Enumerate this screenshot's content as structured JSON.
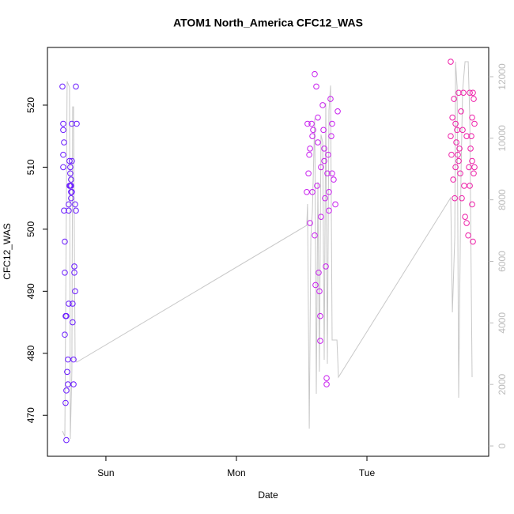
{
  "chart_data": {
    "type": "scatter",
    "title": "ATOM1 North_America CFC12_WAS",
    "x_label": "Date",
    "y_label": "CFC12_WAS",
    "xlim": [
      -0.448,
      2.933
    ],
    "xticks": [
      {
        "value": 0,
        "label": "Sun"
      },
      {
        "value": 1,
        "label": "Mon"
      },
      {
        "value": 2,
        "label": "Tue"
      }
    ],
    "ylim": [
      463.4,
      529.3
    ],
    "yticks": [
      470,
      480,
      490,
      500,
      510,
      520
    ],
    "y2lim": [
      -334,
      12951
    ],
    "y2ticks": [
      0,
      2000,
      4000,
      6000,
      8000,
      10000,
      12000
    ],
    "y2_color": "#bbbbbb",
    "series": [
      {
        "color": "#6a1bff",
        "x": [
          -0.333,
          -0.327,
          -0.327,
          -0.321,
          -0.327,
          -0.327,
          -0.321,
          -0.315,
          -0.315,
          -0.309,
          -0.303,
          -0.315,
          -0.309,
          -0.303,
          -0.303,
          -0.297,
          -0.291,
          -0.291,
          -0.285,
          -0.285,
          -0.285,
          -0.279,
          -0.279,
          -0.273,
          -0.273,
          -0.267,
          -0.267,
          -0.267,
          -0.261,
          -0.261,
          -0.261,
          -0.255,
          -0.255,
          -0.248,
          -0.248,
          -0.242,
          -0.242,
          -0.236,
          -0.236,
          -0.23,
          -0.224,
          -0.23,
          -0.273,
          -0.267
        ],
        "values": [
          523,
          517,
          516,
          514,
          512,
          510,
          503,
          498,
          493,
          486,
          486,
          483,
          472,
          474,
          466,
          477,
          479,
          475,
          488,
          503,
          504,
          507,
          511,
          510,
          509,
          508,
          506,
          505,
          506,
          511,
          517,
          488,
          485,
          479,
          475,
          493,
          494,
          490,
          504,
          503,
          517,
          523,
          507,
          507
        ]
      },
      {
        "color": "#c81fee",
        "x": [
          1.539,
          1.545,
          1.552,
          1.558,
          1.564,
          1.576,
          1.582,
          1.588,
          1.6,
          1.6,
          1.606,
          1.612,
          1.618,
          1.624,
          1.624,
          1.63,
          1.636,
          1.642,
          1.642,
          1.648,
          1.661,
          1.667,
          1.673,
          1.679,
          1.685,
          1.691,
          1.691,
          1.697,
          1.703,
          1.709,
          1.721,
          1.727,
          1.733,
          1.745,
          1.758,
          1.776,
          1.648,
          1.673,
          1.582,
          1.564,
          1.733,
          1.709
        ],
        "values": [
          506,
          517,
          509,
          512,
          501,
          517,
          506,
          516,
          525,
          499,
          491,
          523,
          507,
          514,
          518,
          493,
          490,
          486,
          482,
          510,
          520,
          516,
          513,
          505,
          494,
          476,
          475,
          509,
          512,
          506,
          521,
          515,
          517,
          508,
          504,
          519,
          502,
          511,
          515,
          513,
          509,
          503
        ]
      },
      {
        "color": "#ee1fa8",
        "x": [
          2.642,
          2.642,
          2.648,
          2.655,
          2.661,
          2.667,
          2.679,
          2.679,
          2.685,
          2.691,
          2.703,
          2.703,
          2.709,
          2.715,
          2.721,
          2.727,
          2.739,
          2.745,
          2.752,
          2.764,
          2.764,
          2.776,
          2.782,
          2.788,
          2.794,
          2.8,
          2.806,
          2.806,
          2.812,
          2.812,
          2.818,
          2.824,
          2.824,
          2.818,
          2.673,
          2.697,
          2.733,
          2.788,
          2.806
        ],
        "values": [
          527,
          515,
          512,
          518,
          508,
          521,
          517,
          510,
          514,
          516,
          522,
          511,
          513,
          509,
          519,
          505,
          522,
          507,
          502,
          515,
          501,
          499,
          510,
          507,
          513,
          515,
          518,
          504,
          522,
          498,
          521,
          517,
          510,
          509,
          505,
          512,
          516,
          522,
          511
        ]
      }
    ],
    "line": {
      "color": "#c8c8c8",
      "axis": "y2",
      "x": [
        -0.333,
        -0.315,
        -0.297,
        -0.279,
        -0.273,
        -0.261,
        -0.255,
        -0.248,
        -0.236,
        -0.224,
        1.539,
        1.545,
        1.558,
        1.57,
        1.582,
        1.6,
        1.612,
        1.624,
        1.636,
        1.648,
        1.661,
        1.673,
        1.685,
        1.697,
        1.709,
        1.721,
        1.733,
        1.745,
        1.77,
        1.782,
        2.642,
        2.655,
        2.673,
        2.679,
        2.691,
        2.703,
        2.721,
        2.733,
        2.752,
        2.776,
        2.788,
        2.806
      ],
      "values": [
        488,
        308,
        11845,
        11660,
        231,
        2415,
        11020,
        11020,
        2800,
        2724,
        7170,
        7862,
        565,
        6783,
        7600,
        10640,
        1696,
        8580,
        2415,
        10120,
        9870,
        2800,
        11150,
        2672,
        10900,
        11716,
        3443,
        3443,
        3443,
        2235,
        8068,
        4342,
        6783,
        12488,
        11666,
        1567,
        8840,
        11537,
        12488,
        12488,
        10640,
        2235
      ]
    }
  }
}
